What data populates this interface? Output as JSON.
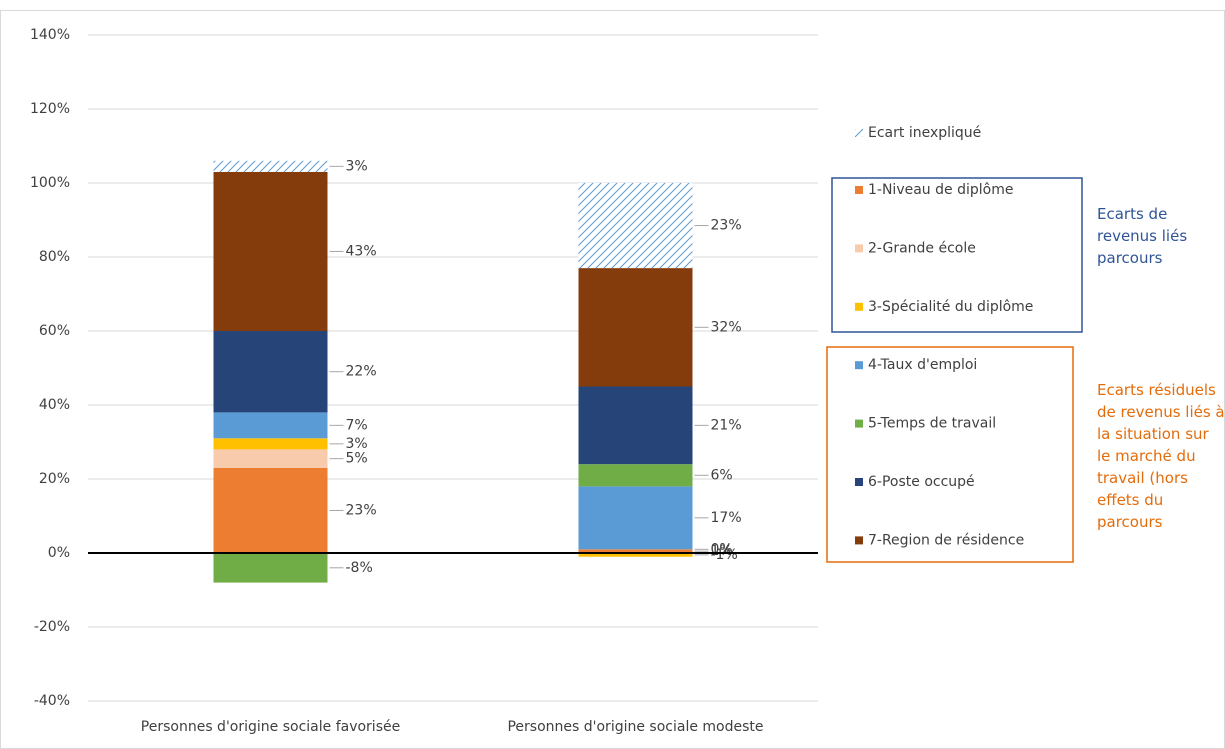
{
  "chart_data": {
    "type": "stacked_bar",
    "categories": [
      "Personnes d'origine sociale favorisée",
      "Personnes d'origine sociale modeste"
    ],
    "series": [
      {
        "name": "1-Niveau de diplôme",
        "color": "#ed7d31",
        "values": [
          23,
          1
        ],
        "value_labels": [
          "23%",
          "1%"
        ]
      },
      {
        "name": "2-Grande école",
        "color": "#f8cbad",
        "values": [
          5,
          0
        ],
        "value_labels": [
          "5%",
          "0%"
        ]
      },
      {
        "name": "3-Spécialité du diplôme",
        "color": "#ffc000",
        "values": [
          3,
          -1
        ],
        "value_labels": [
          "3%",
          "-1%"
        ]
      },
      {
        "name": "4-Taux d'emploi",
        "color": "#5b9bd5",
        "values": [
          7,
          17
        ],
        "value_labels": [
          "7%",
          "17%"
        ]
      },
      {
        "name": "5-Temps de travail",
        "color": "#70ad47",
        "values": [
          -8,
          6
        ],
        "value_labels": [
          "-8%",
          "6%"
        ]
      },
      {
        "name": "6-Poste occupé",
        "color": "#264478",
        "values": [
          22,
          21
        ],
        "value_labels": [
          "22%",
          "21%"
        ]
      },
      {
        "name": "7-Region de résidence",
        "color": "#843c0c",
        "values": [
          43,
          32
        ],
        "value_labels": [
          "43%",
          "32%"
        ]
      },
      {
        "name": "Ecart inexpliqué",
        "color": "#5b9bd5",
        "hatch": true,
        "values": [
          3,
          23
        ],
        "value_labels": [
          "3%",
          "23%"
        ]
      }
    ],
    "ylim": [
      -40,
      140
    ],
    "yticks": [
      {
        "value": -40,
        "label": "-40%"
      },
      {
        "value": -20,
        "label": "-20%"
      },
      {
        "value": 0,
        "label": "0%"
      },
      {
        "value": 20,
        "label": "20%"
      },
      {
        "value": 40,
        "label": "40%"
      },
      {
        "value": 60,
        "label": "60%"
      },
      {
        "value": 80,
        "label": "80%"
      },
      {
        "value": 100,
        "label": "100%"
      },
      {
        "value": 120,
        "label": "120%"
      },
      {
        "value": 140,
        "label": "140%"
      }
    ],
    "grid": true,
    "annotations": [
      {
        "text": "Ecarts de revenus liés parcours",
        "color": "#2f5597"
      },
      {
        "text": "Ecarts résiduels de revenus liés à la situation sur le marché du travail (hors effets du parcours",
        "color": "#e46c0a"
      }
    ]
  }
}
